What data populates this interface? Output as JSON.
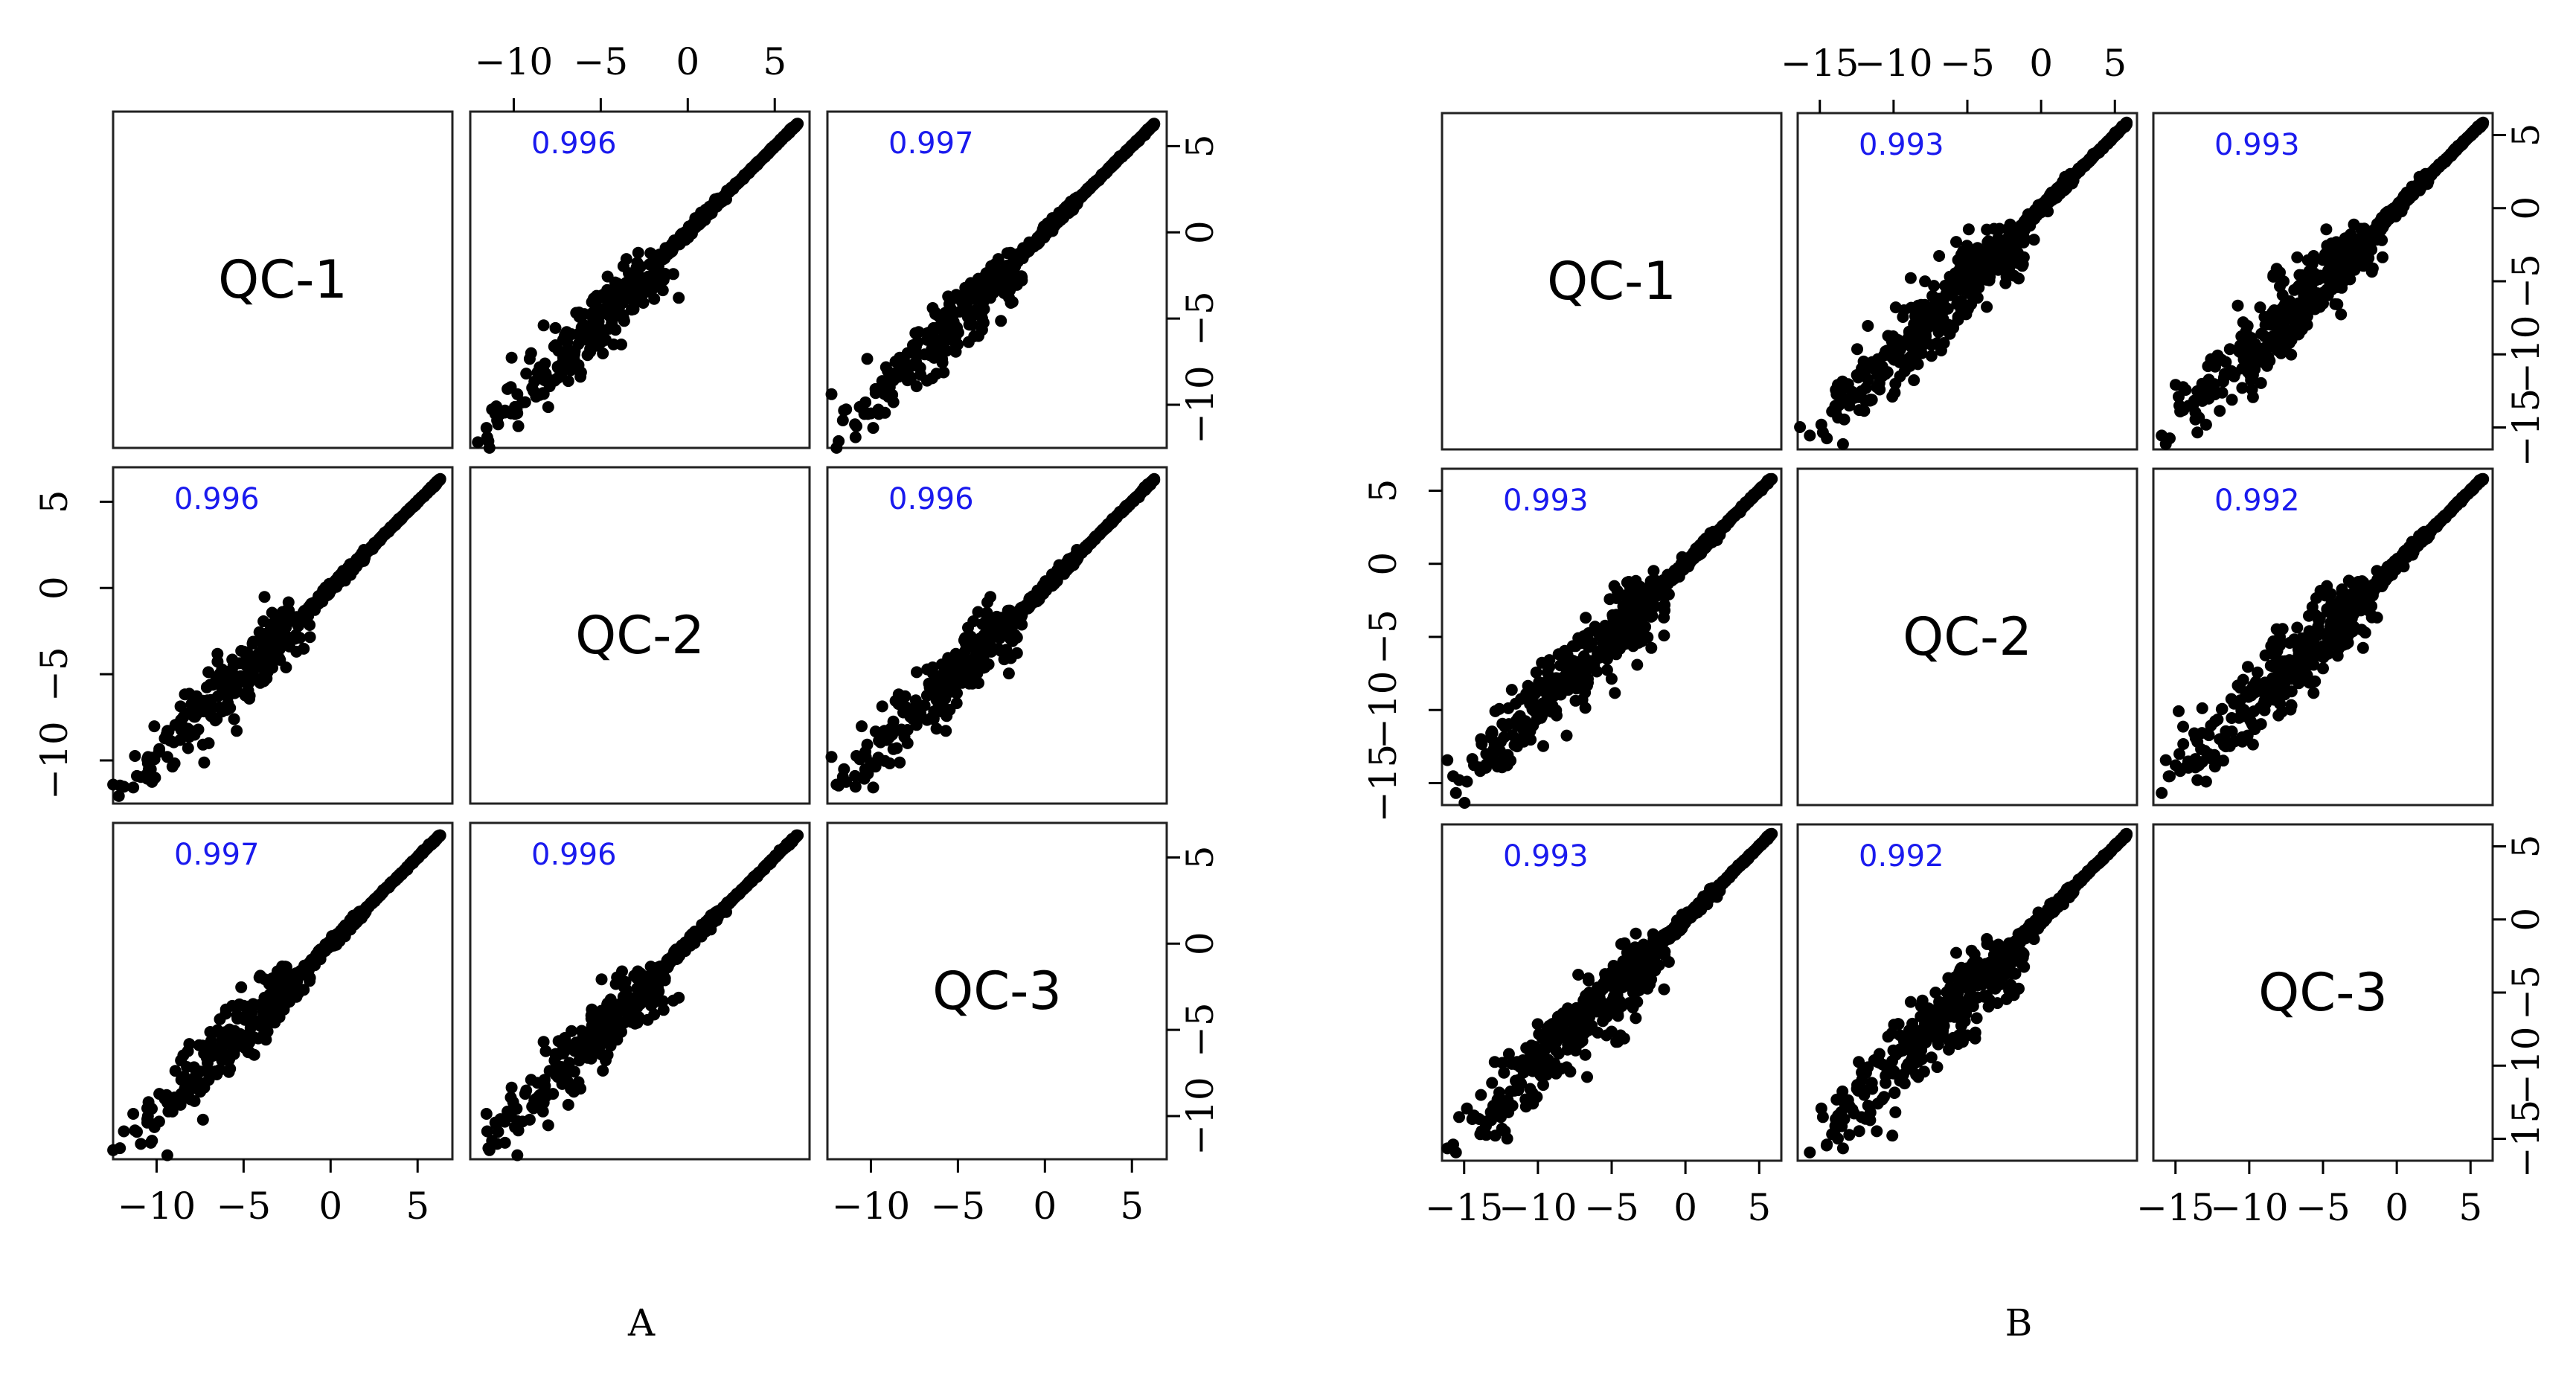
{
  "colors": {
    "correlation": "#1a1aee",
    "points": "#000000",
    "frame": "#222222"
  },
  "captions": [
    "A",
    "B"
  ],
  "chart_data": [
    {
      "type": "scatter",
      "panel": "A",
      "variables": [
        "QC-1",
        "QC-2",
        "QC-3"
      ],
      "correlations": [
        [
          "",
          "0.996",
          "0.997"
        ],
        [
          "0.996",
          "",
          "0.996"
        ],
        [
          "0.997",
          "0.996",
          ""
        ]
      ],
      "lim": [
        -12.5,
        7
      ],
      "ticks": [
        -10,
        -5,
        0,
        5
      ],
      "tick_labels": [
        "−10",
        "−5",
        "0",
        "5"
      ],
      "seed": 11,
      "spread": 1.0
    },
    {
      "type": "scatter",
      "panel": "B",
      "variables": [
        "QC-1",
        "QC-2",
        "QC-3"
      ],
      "correlations": [
        [
          "",
          "0.993",
          "0.993"
        ],
        [
          "0.993",
          "",
          "0.992"
        ],
        [
          "0.993",
          "0.992",
          ""
        ]
      ],
      "lim": [
        -16.5,
        6.5
      ],
      "ticks": [
        -15,
        -10,
        -5,
        0,
        5
      ],
      "tick_labels": [
        "−15",
        "−10",
        "−5",
        "0",
        "5"
      ],
      "seed": 29,
      "spread": 1.35
    }
  ]
}
